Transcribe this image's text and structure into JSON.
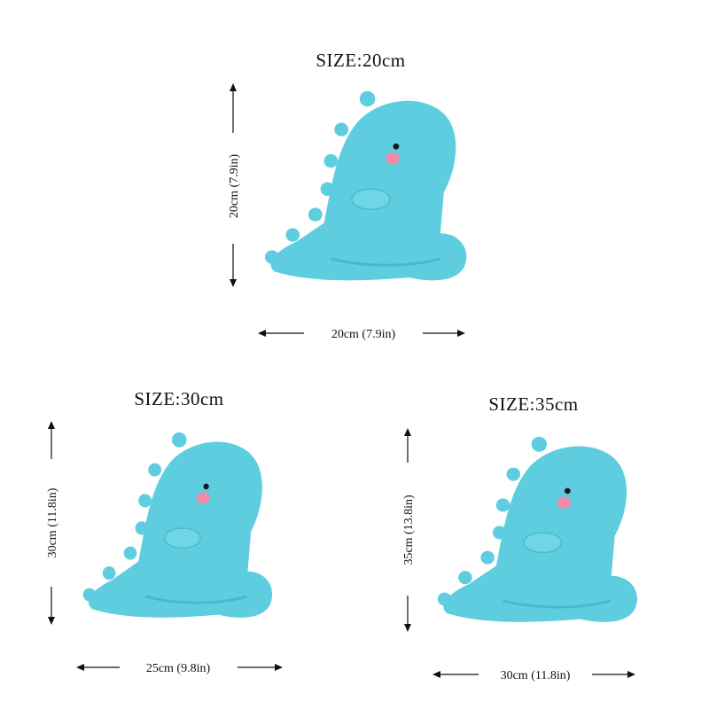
{
  "colors": {
    "plush": "#5fcde0",
    "plush_shade": "#49b8cd",
    "cheek": "#f08aa8",
    "eye": "#1a1a1a"
  },
  "products": [
    {
      "title": "SIZE:20cm",
      "height_label": "20cm (7.9in)",
      "width_label": "20cm (7.9in)"
    },
    {
      "title": "SIZE:30cm",
      "height_label": "30cm (11.8in)",
      "width_label": "25cm (9.8in)"
    },
    {
      "title": "SIZE:35cm",
      "height_label": "35cm (13.8in)",
      "width_label": "30cm (11.8in)"
    }
  ]
}
